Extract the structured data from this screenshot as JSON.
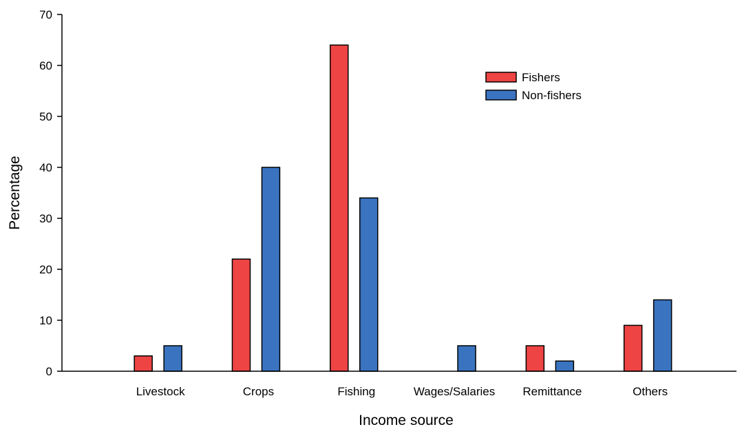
{
  "chart_data": {
    "type": "bar",
    "title": "",
    "xlabel": "Income source",
    "ylabel": "Percentage",
    "ylim": [
      0,
      70
    ],
    "yticks": [
      0,
      10,
      20,
      30,
      40,
      50,
      60,
      70
    ],
    "categories": [
      "Livestock",
      "Crops",
      "Fishing",
      "Wages/Salaries",
      "Remittance",
      "Others"
    ],
    "series": [
      {
        "name": "Fishers",
        "color": "#ee4444",
        "values": [
          3,
          22,
          64,
          0,
          5,
          9
        ]
      },
      {
        "name": "Non-fishers",
        "color": "#3a74c0",
        "values": [
          5,
          40,
          34,
          5,
          2,
          14
        ]
      }
    ],
    "grid": false,
    "legend_position": "top-right"
  }
}
